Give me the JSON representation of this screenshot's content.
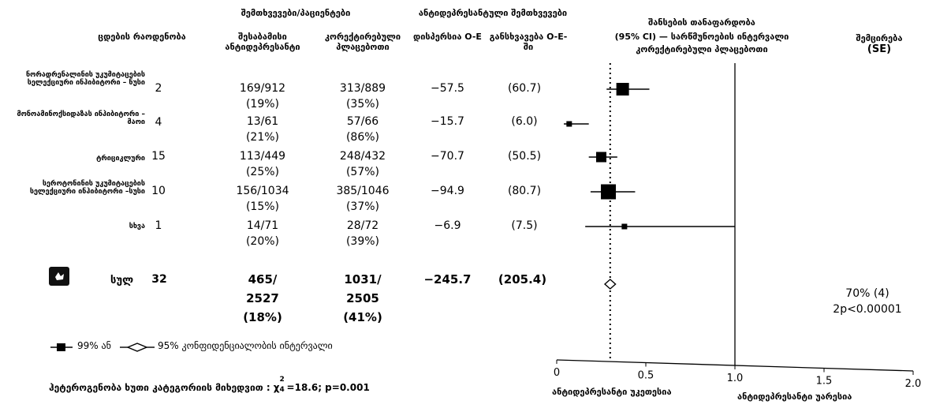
{
  "headers": {
    "events_patients": "შემთხვევები/პაციენტები",
    "antidepressant_events": "ანტიდეპრესანტული შემთხვევები",
    "n_trials": "ცდების რაოდენობა",
    "allocated_ad": "შესაბამისი ანტიდეპრესანტი",
    "adjusted_placebo": "კორექტირებული პლაცებოთი",
    "o_minus_e": "დისპერსია O-E",
    "variance_of_oe": "განსხვავება O-E-ში",
    "ratio_title_1": "შანსების თანაფარდობა",
    "ratio_title_2": "(95% CI) — სარწმუნოების ინტერვალი",
    "ratio_title_3": "კორექტირებული პლაცებოთი",
    "reduction": "შემცირება",
    "reduction_se": "(SE)"
  },
  "rows": [
    {
      "label": "ნორადრენალინის უკუმიტაცების სელექციური ინჰიბიტორი – ნუსი",
      "n": "2",
      "ad": "169/912",
      "ad_pct": "(19%)",
      "pl": "313/889",
      "pl_pct": "(35%)",
      "oe": "−57.5",
      "var": "(60.7)"
    },
    {
      "label": "მონოამინოქსიდაზას ინჰიბიტორი – მაოი",
      "n": "4",
      "ad": "13/61",
      "ad_pct": "(21%)",
      "pl": "57/66",
      "pl_pct": "(86%)",
      "oe": "−15.7",
      "var": "(6.0)"
    },
    {
      "label": "ტრიციკლური",
      "n": "15",
      "ad": "113/449",
      "ad_pct": "(25%)",
      "pl": "248/432",
      "pl_pct": "(57%)",
      "oe": "−70.7",
      "var": "(50.5)"
    },
    {
      "label": "სეროტონინის უკუმიტაცების სელექციური ინჰიბიტორი –სუსი",
      "n": "10",
      "ad": "156/1034",
      "ad_pct": "(15%)",
      "pl": "385/1046",
      "pl_pct": "(37%)",
      "oe": "−94.9",
      "var": "(80.7)"
    },
    {
      "label": "სხვა",
      "n": "1",
      "ad": "14/71",
      "ad_pct": "(20%)",
      "pl": "28/72",
      "pl_pct": "(39%)",
      "oe": "−6.9",
      "var": "(7.5)"
    }
  ],
  "total": {
    "label": "სულ",
    "n": "32",
    "ad_1": "465/",
    "ad_2": "2527",
    "ad_pct": "(18%)",
    "pl_1": "1031/",
    "pl_2": "2505",
    "pl_pct": "(41%)",
    "oe": "−245.7",
    "var": "(205.4)",
    "reduction": "70% (4)",
    "p": "2p<0.00001"
  },
  "legend": {
    "ci99": "99% ან",
    "ci95": "95% კონფიდენციალობის ინტერვალი"
  },
  "heterogeneity": {
    "prefix": "ჰეტეროგენობა ხუთი კატეგორიის მიხედვით : χ",
    "sup": "2",
    "sub": "4",
    "suffix": "=18.6; p=0.001"
  },
  "axis_labels": {
    "favours_ad": "ანტიდეპრესანტი უკეთესია",
    "favours_pl": "ანტიდეპრესანტი უარესია"
  },
  "chart_data": {
    "type": "scatter",
    "x_ticks": [
      "0",
      "0.5",
      "1.0",
      "1.5",
      "2.0"
    ],
    "xlim": [
      0,
      2
    ],
    "reference_line": 1.0,
    "overall_line": 0.3,
    "series": [
      {
        "category": "ნუსი",
        "or": 0.37,
        "ci99": [
          0.28,
          0.52
        ],
        "ci95": [
          0.3,
          0.47
        ]
      },
      {
        "category": "მაოი",
        "or": 0.07,
        "ci99": [
          0.04,
          0.18
        ],
        "ci95": [
          0.05,
          0.14
        ]
      },
      {
        "category": "ტრიციკლური",
        "or": 0.25,
        "ci99": [
          0.18,
          0.34
        ],
        "ci95": [
          0.2,
          0.31
        ]
      },
      {
        "category": "სუსი",
        "or": 0.29,
        "ci99": [
          0.19,
          0.44
        ],
        "ci95": [
          0.22,
          0.38
        ]
      },
      {
        "category": "სხვა",
        "or": 0.38,
        "ci99": [
          0.16,
          1.0
        ],
        "ci95": [
          0.2,
          0.78
        ]
      },
      {
        "category": "სულ",
        "or": 0.3,
        "ci95": [
          0.27,
          0.33
        ],
        "diamond": true
      }
    ]
  }
}
